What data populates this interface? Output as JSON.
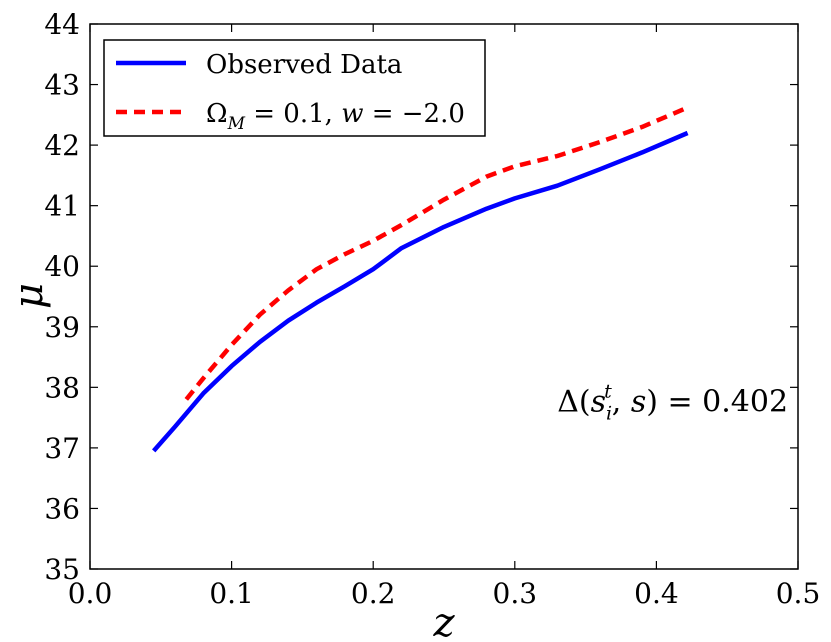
{
  "chart_data": {
    "type": "line",
    "xlabel": "z",
    "ylabel": "μ",
    "xlim": [
      0.0,
      0.5
    ],
    "ylim": [
      35,
      44
    ],
    "xticks": [
      "0.0",
      "0.1",
      "0.2",
      "0.3",
      "0.4",
      "0.5"
    ],
    "yticks": [
      "35",
      "36",
      "37",
      "38",
      "39",
      "40",
      "41",
      "42",
      "43",
      "44"
    ],
    "grid": false,
    "legend_position": "top-left",
    "series": [
      {
        "name": "Observed Data",
        "color": "#0000ff",
        "style": "solid",
        "x": [
          0.045,
          0.06,
          0.08,
          0.1,
          0.12,
          0.14,
          0.16,
          0.18,
          0.2,
          0.22,
          0.25,
          0.28,
          0.3,
          0.33,
          0.36,
          0.39,
          0.422
        ],
        "y": [
          36.95,
          37.35,
          37.9,
          38.35,
          38.75,
          39.1,
          39.4,
          39.67,
          39.95,
          40.3,
          40.65,
          40.95,
          41.12,
          41.33,
          41.6,
          41.88,
          42.2
        ]
      },
      {
        "name": "Ω_M = 0.1, w = −2.0",
        "label_parts": [
          "Ω",
          "M",
          " = 0.1, ",
          "w",
          " = −2.0"
        ],
        "color": "#ff0000",
        "style": "dashed",
        "x": [
          0.068,
          0.08,
          0.1,
          0.12,
          0.14,
          0.16,
          0.18,
          0.2,
          0.22,
          0.25,
          0.28,
          0.3,
          0.33,
          0.36,
          0.39,
          0.42
        ],
        "y": [
          37.8,
          38.15,
          38.7,
          39.2,
          39.6,
          39.95,
          40.2,
          40.42,
          40.68,
          41.1,
          41.48,
          41.65,
          41.82,
          42.05,
          42.3,
          42.6
        ]
      }
    ],
    "annotation": {
      "parts": [
        "Δ(",
        "s",
        "i",
        "t",
        ", ",
        "s",
        ") = 0.402"
      ],
      "x": 0.33,
      "y": 37.6
    }
  }
}
